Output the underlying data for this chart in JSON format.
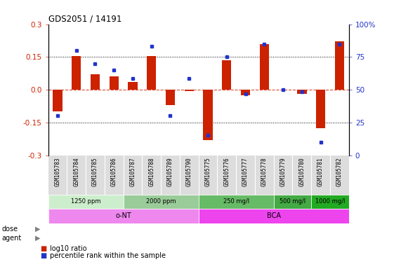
{
  "title": "GDS2051 / 14191",
  "samples": [
    "GSM105783",
    "GSM105784",
    "GSM105785",
    "GSM105786",
    "GSM105787",
    "GSM105788",
    "GSM105789",
    "GSM105790",
    "GSM105775",
    "GSM105776",
    "GSM105777",
    "GSM105778",
    "GSM105779",
    "GSM105780",
    "GSM105781",
    "GSM105782"
  ],
  "log10_ratio": [
    -0.1,
    0.155,
    0.07,
    0.06,
    0.035,
    0.155,
    -0.07,
    -0.005,
    -0.23,
    0.135,
    -0.025,
    0.21,
    0.0,
    -0.02,
    -0.175,
    0.22
  ],
  "percentile_rank_y": [
    -0.12,
    0.18,
    0.12,
    0.09,
    0.05,
    0.2,
    -0.12,
    0.05,
    -0.21,
    0.15,
    -0.02,
    0.21,
    0.0,
    -0.01,
    -0.24,
    0.21
  ],
  "ylim": [
    -0.3,
    0.3
  ],
  "yticks_left": [
    -0.3,
    -0.15,
    0.0,
    0.15,
    0.3
  ],
  "yticks_right_labels": [
    "0",
    "25",
    "50",
    "75",
    "100%"
  ],
  "hlines_dotted": [
    -0.15,
    0.15
  ],
  "hline_dashed": 0.0,
  "bar_color": "#CC2200",
  "dot_color": "#2233CC",
  "dose_groups": [
    {
      "label": "1250 ppm",
      "start": 0,
      "end": 4,
      "color": "#CCEECC"
    },
    {
      "label": "2000 ppm",
      "start": 4,
      "end": 8,
      "color": "#99CC99"
    },
    {
      "label": "250 mg/l",
      "start": 8,
      "end": 12,
      "color": "#66BB66"
    },
    {
      "label": "500 mg/l",
      "start": 12,
      "end": 14,
      "color": "#44AA44"
    },
    {
      "label": "1000 mg/l",
      "start": 14,
      "end": 16,
      "color": "#22AA22"
    }
  ],
  "agent_groups": [
    {
      "label": "o-NT",
      "start": 0,
      "end": 8,
      "color": "#EE88EE"
    },
    {
      "label": "BCA",
      "start": 8,
      "end": 16,
      "color": "#EE44EE"
    }
  ],
  "legend_bar_label": "log10 ratio",
  "legend_dot_label": "percentile rank within the sample",
  "bg_color": "#FFFFFF",
  "plot_bg": "#FFFFFF",
  "axis_color_left": "#CC2200",
  "axis_color_right": "#2233CC",
  "dose_row_label": "dose",
  "agent_row_label": "agent",
  "sample_bg": "#DDDDDD"
}
